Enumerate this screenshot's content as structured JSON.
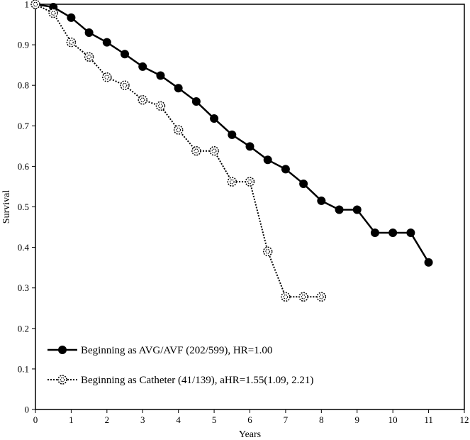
{
  "chart_data": {
    "type": "line",
    "xlabel": "Years",
    "ylabel": "Survival",
    "xlim": [
      0,
      12
    ],
    "ylim": [
      0,
      1
    ],
    "x_ticks": [
      "0",
      "1",
      "2",
      "3",
      "4",
      "5",
      "6",
      "7",
      "8",
      "9",
      "10",
      "11",
      "12"
    ],
    "y_ticks": [
      "0",
      "0.1",
      "0.2",
      "0.3",
      "0.4",
      "0.5",
      "0.6",
      "0.7",
      "0.8",
      "0.9",
      "1"
    ],
    "grid": false,
    "legend_position": "bottom-left",
    "series": [
      {
        "name": "Beginning as AVG/AVF (202/599), HR=1.00",
        "style": "solid",
        "marker": "filled-circle",
        "color": "#000000",
        "x": [
          0,
          0.5,
          1,
          1.5,
          2,
          2.5,
          3,
          3.5,
          4,
          4.5,
          5,
          5.5,
          6,
          6.5,
          7,
          7.5,
          8,
          8.5,
          9,
          9.5,
          10,
          10.5,
          11
        ],
        "y": [
          1.0,
          0.993,
          0.967,
          0.93,
          0.906,
          0.877,
          0.846,
          0.824,
          0.793,
          0.76,
          0.718,
          0.678,
          0.649,
          0.616,
          0.593,
          0.557,
          0.515,
          0.493,
          0.493,
          0.436,
          0.436,
          0.436,
          0.363
        ]
      },
      {
        "name": "Beginning as Catheter (41/139), aHR=1.55(1.09, 2.21)",
        "style": "dotted",
        "marker": "open-circle",
        "color": "#000000",
        "x": [
          0,
          0.5,
          1,
          1.5,
          2,
          2.5,
          3,
          3.5,
          4,
          4.5,
          5,
          5.5,
          6,
          6.5,
          7,
          7.5,
          8
        ],
        "y": [
          1.0,
          0.978,
          0.906,
          0.87,
          0.82,
          0.8,
          0.764,
          0.749,
          0.69,
          0.638,
          0.638,
          0.562,
          0.562,
          0.39,
          0.278,
          0.278,
          0.278
        ]
      }
    ]
  }
}
